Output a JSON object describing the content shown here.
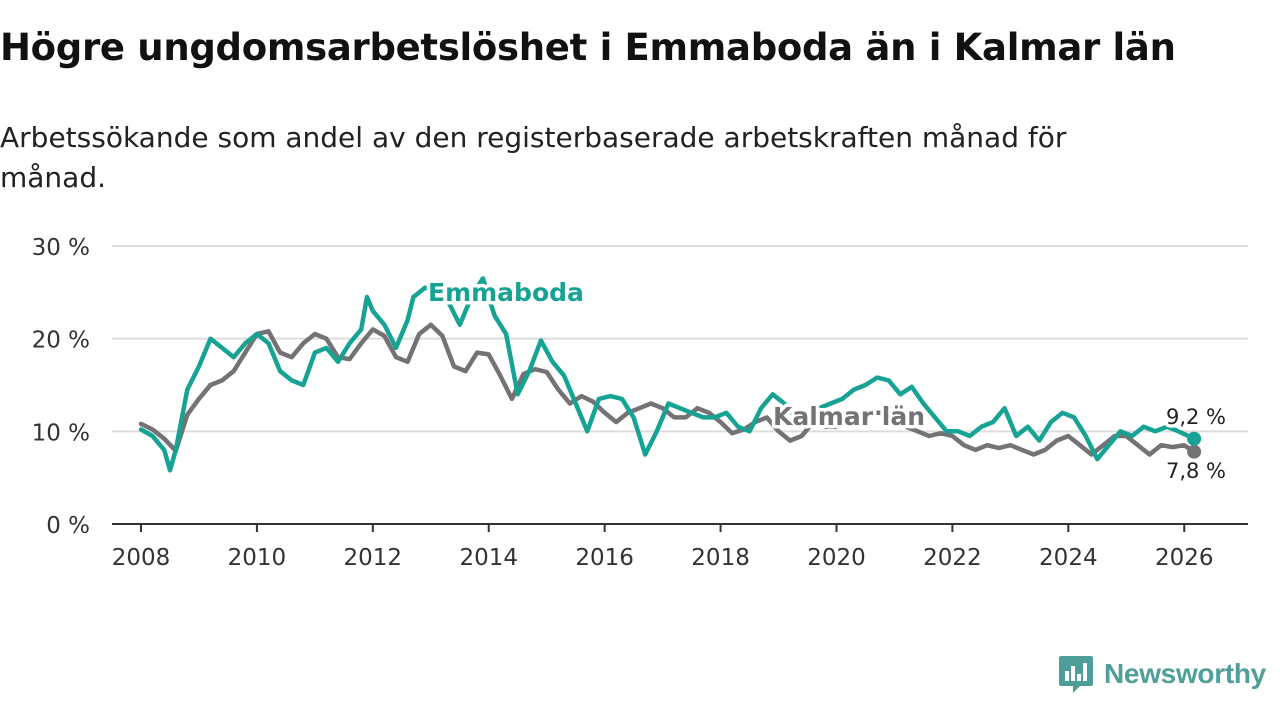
{
  "header": {
    "title": "Högre ungdomsarbetslöshet i Emmaboda än i Kalmar län",
    "subtitle": "Arbetssökande som andel av den registerbaserade arbetskraften månad för månad."
  },
  "brand": {
    "name": "Newsworthy"
  },
  "colors": {
    "emmaboda": "#16a394",
    "kalmar": "#757275",
    "grid": "#dddddd",
    "axis": "#333333",
    "brand": "#4e9f9a"
  },
  "chart_data": {
    "type": "line",
    "title": "Högre ungdomsarbetslöshet i Emmaboda än i Kalmar län",
    "xlabel": "",
    "ylabel": "",
    "xlim": [
      2007.5,
      2027.1
    ],
    "ylim": [
      0,
      30
    ],
    "y_ticks": [
      0,
      10,
      20,
      30
    ],
    "y_tick_labels": [
      "0 %",
      "10 %",
      "20 %",
      "30 %"
    ],
    "x_ticks": [
      2008,
      2010,
      2012,
      2014,
      2016,
      2018,
      2020,
      2022,
      2024,
      2026
    ],
    "x_tick_labels": [
      "2008",
      "2010",
      "2012",
      "2014",
      "2016",
      "2018",
      "2020",
      "2022",
      "2024",
      "2026"
    ],
    "grid": true,
    "series": [
      {
        "name": "Kalmar län",
        "label": "Kalmar län",
        "end_label": "7,8 %",
        "x": [
          2008.0,
          2008.2,
          2008.4,
          2008.6,
          2008.8,
          2009.0,
          2009.2,
          2009.4,
          2009.6,
          2009.8,
          2010.0,
          2010.2,
          2010.4,
          2010.6,
          2010.8,
          2011.0,
          2011.2,
          2011.4,
          2011.6,
          2011.8,
          2012.0,
          2012.2,
          2012.4,
          2012.6,
          2012.8,
          2013.0,
          2013.2,
          2013.4,
          2013.6,
          2013.8,
          2014.0,
          2014.2,
          2014.4,
          2014.6,
          2014.8,
          2015.0,
          2015.2,
          2015.4,
          2015.6,
          2015.8,
          2016.0,
          2016.2,
          2016.4,
          2016.6,
          2016.8,
          2017.0,
          2017.2,
          2017.4,
          2017.6,
          2017.8,
          2018.0,
          2018.2,
          2018.4,
          2018.6,
          2018.8,
          2019.0,
          2019.2,
          2019.4,
          2019.6,
          2019.8,
          2020.0,
          2020.2,
          2020.4,
          2020.6,
          2020.8,
          2021.0,
          2021.2,
          2021.4,
          2021.6,
          2021.8,
          2022.0,
          2022.2,
          2022.4,
          2022.6,
          2022.8,
          2023.0,
          2023.2,
          2023.4,
          2023.6,
          2023.8,
          2024.0,
          2024.2,
          2024.4,
          2024.6,
          2024.8,
          2025.0,
          2025.2,
          2025.4,
          2025.6,
          2025.8,
          2026.0,
          2026.17
        ],
        "values": [
          10.8,
          10.2,
          9.2,
          7.9,
          11.8,
          13.5,
          15.0,
          15.5,
          16.5,
          18.5,
          20.5,
          20.8,
          18.5,
          18.0,
          19.5,
          20.5,
          20.0,
          18.0,
          17.8,
          19.5,
          21.0,
          20.3,
          18.0,
          17.5,
          20.5,
          21.5,
          20.3,
          17.0,
          16.5,
          18.5,
          18.3,
          16.0,
          13.5,
          16.2,
          16.7,
          16.4,
          14.5,
          13.0,
          13.8,
          13.2,
          12.0,
          11.0,
          12.0,
          12.5,
          13.0,
          12.5,
          11.5,
          11.5,
          12.5,
          12.0,
          11.0,
          9.8,
          10.2,
          11.0,
          11.5,
          10.0,
          9.0,
          9.5,
          11.0,
          10.5,
          10.5,
          11.0,
          11.5,
          12.0,
          12.0,
          11.0,
          10.5,
          10.0,
          9.5,
          9.8,
          9.5,
          8.5,
          8.0,
          8.5,
          8.2,
          8.5,
          8.0,
          7.5,
          8.0,
          9.0,
          9.5,
          8.5,
          7.5,
          8.5,
          9.5,
          9.5,
          8.5,
          7.5,
          8.5,
          8.3,
          8.5,
          7.8
        ]
      },
      {
        "name": "Emmaboda",
        "label": "Emmaboda",
        "end_label": "9,2 %",
        "x": [
          2008.0,
          2008.2,
          2008.4,
          2008.5,
          2008.6,
          2008.8,
          2009.0,
          2009.2,
          2009.4,
          2009.6,
          2009.8,
          2010.0,
          2010.2,
          2010.4,
          2010.6,
          2010.8,
          2011.0,
          2011.2,
          2011.4,
          2011.6,
          2011.8,
          2011.9,
          2012.0,
          2012.2,
          2012.4,
          2012.6,
          2012.7,
          2012.9,
          2013.1,
          2013.3,
          2013.5,
          2013.7,
          2013.9,
          2014.1,
          2014.3,
          2014.5,
          2014.7,
          2014.9,
          2015.1,
          2015.3,
          2015.5,
          2015.7,
          2015.9,
          2016.1,
          2016.3,
          2016.5,
          2016.7,
          2016.9,
          2017.1,
          2017.3,
          2017.5,
          2017.7,
          2017.9,
          2018.1,
          2018.3,
          2018.5,
          2018.7,
          2018.9,
          2019.1,
          2019.3,
          2019.5,
          2019.7,
          2019.9,
          2020.1,
          2020.3,
          2020.5,
          2020.7,
          2020.9,
          2021.1,
          2021.3,
          2021.5,
          2021.7,
          2021.9,
          2022.1,
          2022.3,
          2022.5,
          2022.7,
          2022.9,
          2023.1,
          2023.3,
          2023.5,
          2023.7,
          2023.9,
          2024.1,
          2024.3,
          2024.5,
          2024.7,
          2024.9,
          2025.1,
          2025.3,
          2025.5,
          2025.7,
          2025.9,
          2026.17
        ],
        "values": [
          10.2,
          9.5,
          8.0,
          5.8,
          8.0,
          14.5,
          17.0,
          20.0,
          19.0,
          18.0,
          19.5,
          20.5,
          19.5,
          16.5,
          15.5,
          15.0,
          18.5,
          19.0,
          17.5,
          19.5,
          21.0,
          24.5,
          23.0,
          21.5,
          19.0,
          22.0,
          24.5,
          25.5,
          25.0,
          24.0,
          21.5,
          24.5,
          26.5,
          22.5,
          20.5,
          14.0,
          16.5,
          19.8,
          17.5,
          16.0,
          13.0,
          10.0,
          13.5,
          13.8,
          13.5,
          11.5,
          7.5,
          10.0,
          13.0,
          12.5,
          12.0,
          11.5,
          11.5,
          12.0,
          10.5,
          10.0,
          12.5,
          14.0,
          13.0,
          11.5,
          10.5,
          12.5,
          13.0,
          13.5,
          14.5,
          15.0,
          15.8,
          15.5,
          14.0,
          14.8,
          13.0,
          11.5,
          10.0,
          10.0,
          9.5,
          10.5,
          11.0,
          12.5,
          9.5,
          10.5,
          9.0,
          11.0,
          12.0,
          11.5,
          9.5,
          7.0,
          8.5,
          10.0,
          9.5,
          10.5,
          10.0,
          10.5,
          10.0,
          9.2
        ]
      }
    ]
  }
}
